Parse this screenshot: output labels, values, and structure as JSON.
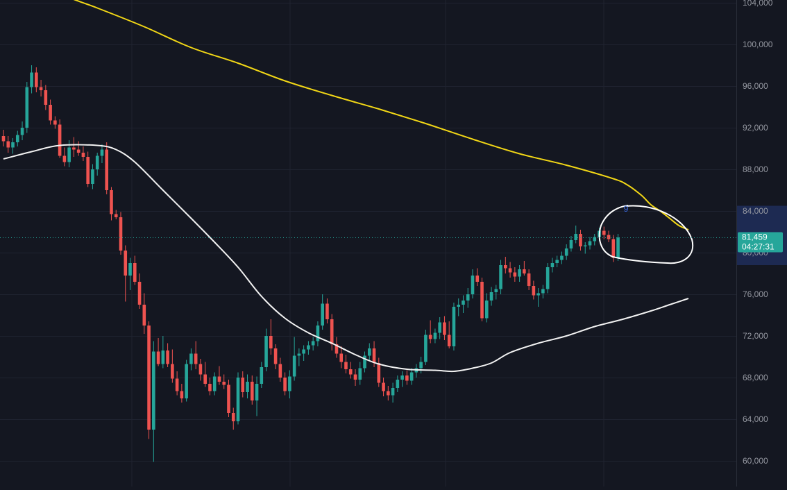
{
  "chart_data": {
    "type": "candlestick",
    "y_axis": {
      "position": "right",
      "ylim": [
        59400,
        104000
      ],
      "ticks": [
        60000,
        64000,
        68000,
        72000,
        76000,
        80000,
        84000,
        88000,
        92000,
        96000,
        100000,
        104000
      ],
      "tick_labels": [
        "60,000",
        "64,000",
        "68,000",
        "72,000",
        "76,000",
        "80,000",
        "84,000",
        "88,000",
        "92,000",
        "96,000",
        "100,000",
        "104,000"
      ]
    },
    "grid": true,
    "candles": [
      {
        "o": 91200,
        "h": 91800,
        "l": 90200,
        "c": 90700
      },
      {
        "o": 90700,
        "h": 91200,
        "l": 89600,
        "c": 90100
      },
      {
        "o": 90100,
        "h": 91000,
        "l": 89500,
        "c": 90600
      },
      {
        "o": 90600,
        "h": 91700,
        "l": 90200,
        "c": 91300
      },
      {
        "o": 91300,
        "h": 92600,
        "l": 90800,
        "c": 92000
      },
      {
        "o": 92000,
        "h": 96400,
        "l": 91500,
        "c": 95900
      },
      {
        "o": 95900,
        "h": 98000,
        "l": 95300,
        "c": 97300
      },
      {
        "o": 97300,
        "h": 97800,
        "l": 95400,
        "c": 95900
      },
      {
        "o": 95900,
        "h": 96600,
        "l": 95000,
        "c": 95600
      },
      {
        "o": 95600,
        "h": 96100,
        "l": 93700,
        "c": 94200
      },
      {
        "o": 94200,
        "h": 94700,
        "l": 92300,
        "c": 92700
      },
      {
        "o": 92700,
        "h": 93100,
        "l": 91900,
        "c": 92300
      },
      {
        "o": 92300,
        "h": 92800,
        "l": 89100,
        "c": 89300
      },
      {
        "o": 89300,
        "h": 90100,
        "l": 88300,
        "c": 88700
      },
      {
        "o": 88700,
        "h": 90800,
        "l": 88200,
        "c": 90100
      },
      {
        "o": 90100,
        "h": 91100,
        "l": 89200,
        "c": 89900
      },
      {
        "o": 89900,
        "h": 90700,
        "l": 89300,
        "c": 89600
      },
      {
        "o": 89600,
        "h": 90200,
        "l": 88800,
        "c": 89200
      },
      {
        "o": 89200,
        "h": 89700,
        "l": 86300,
        "c": 86600
      },
      {
        "o": 86600,
        "h": 88500,
        "l": 86100,
        "c": 88000
      },
      {
        "o": 88000,
        "h": 89600,
        "l": 87400,
        "c": 89300
      },
      {
        "o": 89300,
        "h": 90400,
        "l": 88600,
        "c": 89900
      },
      {
        "o": 89900,
        "h": 90600,
        "l": 85600,
        "c": 86000
      },
      {
        "o": 86000,
        "h": 86300,
        "l": 83100,
        "c": 83700
      },
      {
        "o": 83700,
        "h": 84100,
        "l": 83200,
        "c": 83400
      },
      {
        "o": 83400,
        "h": 83900,
        "l": 79800,
        "c": 80200
      },
      {
        "o": 80200,
        "h": 80700,
        "l": 75300,
        "c": 77800
      },
      {
        "o": 77800,
        "h": 79500,
        "l": 76400,
        "c": 79000
      },
      {
        "o": 79000,
        "h": 79700,
        "l": 76900,
        "c": 77200
      },
      {
        "o": 77200,
        "h": 78000,
        "l": 74600,
        "c": 75000
      },
      {
        "o": 75000,
        "h": 76100,
        "l": 72200,
        "c": 73000
      },
      {
        "o": 73000,
        "h": 73400,
        "l": 62100,
        "c": 63000
      },
      {
        "o": 63000,
        "h": 71500,
        "l": 59900,
        "c": 70500
      },
      {
        "o": 70500,
        "h": 71800,
        "l": 69100,
        "c": 69300
      },
      {
        "o": 69300,
        "h": 72000,
        "l": 68900,
        "c": 70600
      },
      {
        "o": 70600,
        "h": 71300,
        "l": 69000,
        "c": 69300
      },
      {
        "o": 69300,
        "h": 70700,
        "l": 67500,
        "c": 67900
      },
      {
        "o": 67900,
        "h": 68600,
        "l": 66300,
        "c": 66700
      },
      {
        "o": 66700,
        "h": 67400,
        "l": 65600,
        "c": 66000
      },
      {
        "o": 66000,
        "h": 69700,
        "l": 65700,
        "c": 69300
      },
      {
        "o": 69300,
        "h": 70800,
        "l": 68700,
        "c": 70300
      },
      {
        "o": 70300,
        "h": 71500,
        "l": 68800,
        "c": 69300
      },
      {
        "o": 69300,
        "h": 69800,
        "l": 67700,
        "c": 68300
      },
      {
        "o": 68300,
        "h": 69500,
        "l": 67100,
        "c": 67400
      },
      {
        "o": 67400,
        "h": 68000,
        "l": 66300,
        "c": 66700
      },
      {
        "o": 66700,
        "h": 68500,
        "l": 66300,
        "c": 68100
      },
      {
        "o": 68100,
        "h": 69100,
        "l": 67300,
        "c": 67600
      },
      {
        "o": 67600,
        "h": 68300,
        "l": 66900,
        "c": 67300
      },
      {
        "o": 67300,
        "h": 67800,
        "l": 64200,
        "c": 64600
      },
      {
        "o": 64600,
        "h": 65100,
        "l": 63000,
        "c": 63800
      },
      {
        "o": 63800,
        "h": 68500,
        "l": 63500,
        "c": 68000
      },
      {
        "o": 68000,
        "h": 68600,
        "l": 66100,
        "c": 66600
      },
      {
        "o": 66600,
        "h": 68300,
        "l": 66000,
        "c": 67600
      },
      {
        "o": 67600,
        "h": 68200,
        "l": 65400,
        "c": 65800
      },
      {
        "o": 65800,
        "h": 68100,
        "l": 64300,
        "c": 67400
      },
      {
        "o": 67400,
        "h": 69500,
        "l": 67000,
        "c": 69000
      },
      {
        "o": 69000,
        "h": 72700,
        "l": 68600,
        "c": 72000
      },
      {
        "o": 72000,
        "h": 73600,
        "l": 70200,
        "c": 70800
      },
      {
        "o": 70800,
        "h": 71200,
        "l": 68800,
        "c": 69300
      },
      {
        "o": 69300,
        "h": 69900,
        "l": 67600,
        "c": 68000
      },
      {
        "o": 68000,
        "h": 68500,
        "l": 66300,
        "c": 66700
      },
      {
        "o": 66700,
        "h": 68700,
        "l": 66000,
        "c": 68100
      },
      {
        "o": 68100,
        "h": 71900,
        "l": 67700,
        "c": 70100
      },
      {
        "o": 70100,
        "h": 70800,
        "l": 69100,
        "c": 70300
      },
      {
        "o": 70300,
        "h": 71100,
        "l": 69600,
        "c": 70700
      },
      {
        "o": 70700,
        "h": 71500,
        "l": 70200,
        "c": 71100
      },
      {
        "o": 71100,
        "h": 71900,
        "l": 70600,
        "c": 71500
      },
      {
        "o": 71500,
        "h": 73400,
        "l": 71000,
        "c": 73000
      },
      {
        "o": 73000,
        "h": 76000,
        "l": 72600,
        "c": 75100
      },
      {
        "o": 75100,
        "h": 75600,
        "l": 73200,
        "c": 73600
      },
      {
        "o": 73600,
        "h": 74100,
        "l": 70600,
        "c": 71200
      },
      {
        "o": 71200,
        "h": 71900,
        "l": 69900,
        "c": 70300
      },
      {
        "o": 70300,
        "h": 71000,
        "l": 68900,
        "c": 69500
      },
      {
        "o": 69500,
        "h": 70200,
        "l": 68400,
        "c": 68800
      },
      {
        "o": 68800,
        "h": 69500,
        "l": 67900,
        "c": 68300
      },
      {
        "o": 68300,
        "h": 68800,
        "l": 67200,
        "c": 67800
      },
      {
        "o": 67800,
        "h": 69500,
        "l": 67300,
        "c": 68900
      },
      {
        "o": 68900,
        "h": 70500,
        "l": 68500,
        "c": 70100
      },
      {
        "o": 70100,
        "h": 71300,
        "l": 69600,
        "c": 70800
      },
      {
        "o": 70800,
        "h": 71500,
        "l": 69000,
        "c": 69400
      },
      {
        "o": 69400,
        "h": 69900,
        "l": 67100,
        "c": 67500
      },
      {
        "o": 67500,
        "h": 68000,
        "l": 66200,
        "c": 66700
      },
      {
        "o": 66700,
        "h": 67200,
        "l": 65800,
        "c": 66300
      },
      {
        "o": 66300,
        "h": 67500,
        "l": 65600,
        "c": 67000
      },
      {
        "o": 67000,
        "h": 68200,
        "l": 66600,
        "c": 67800
      },
      {
        "o": 67800,
        "h": 68600,
        "l": 67100,
        "c": 68200
      },
      {
        "o": 68200,
        "h": 68700,
        "l": 67300,
        "c": 67700
      },
      {
        "o": 67700,
        "h": 68900,
        "l": 67300,
        "c": 68500
      },
      {
        "o": 68500,
        "h": 69300,
        "l": 68000,
        "c": 68900
      },
      {
        "o": 68900,
        "h": 70000,
        "l": 68400,
        "c": 69500
      },
      {
        "o": 69500,
        "h": 72600,
        "l": 69200,
        "c": 72100
      },
      {
        "o": 72100,
        "h": 73500,
        "l": 71300,
        "c": 71700
      },
      {
        "o": 71700,
        "h": 72700,
        "l": 71300,
        "c": 72300
      },
      {
        "o": 72300,
        "h": 73800,
        "l": 71700,
        "c": 73300
      },
      {
        "o": 73300,
        "h": 73900,
        "l": 71600,
        "c": 72100
      },
      {
        "o": 72100,
        "h": 73400,
        "l": 70800,
        "c": 71000
      },
      {
        "o": 71000,
        "h": 75200,
        "l": 70600,
        "c": 74800
      },
      {
        "o": 74800,
        "h": 75600,
        "l": 73900,
        "c": 75000
      },
      {
        "o": 75000,
        "h": 75900,
        "l": 74200,
        "c": 75400
      },
      {
        "o": 75400,
        "h": 76600,
        "l": 74700,
        "c": 76000
      },
      {
        "o": 76000,
        "h": 78400,
        "l": 75600,
        "c": 77800
      },
      {
        "o": 77800,
        "h": 78500,
        "l": 76800,
        "c": 77200
      },
      {
        "o": 77200,
        "h": 77600,
        "l": 73400,
        "c": 73700
      },
      {
        "o": 73700,
        "h": 76100,
        "l": 73300,
        "c": 75400
      },
      {
        "o": 75400,
        "h": 76700,
        "l": 74900,
        "c": 76200
      },
      {
        "o": 76200,
        "h": 76900,
        "l": 75500,
        "c": 76500
      },
      {
        "o": 76500,
        "h": 79300,
        "l": 76000,
        "c": 78800
      },
      {
        "o": 78800,
        "h": 79600,
        "l": 78000,
        "c": 78500
      },
      {
        "o": 78500,
        "h": 79100,
        "l": 77600,
        "c": 78100
      },
      {
        "o": 78100,
        "h": 78600,
        "l": 77200,
        "c": 77700
      },
      {
        "o": 77700,
        "h": 78800,
        "l": 77200,
        "c": 78400
      },
      {
        "o": 78400,
        "h": 79200,
        "l": 77800,
        "c": 78000
      },
      {
        "o": 78000,
        "h": 78400,
        "l": 76400,
        "c": 76800
      },
      {
        "o": 76800,
        "h": 77300,
        "l": 75500,
        "c": 75900
      },
      {
        "o": 75900,
        "h": 76600,
        "l": 74800,
        "c": 76100
      },
      {
        "o": 76100,
        "h": 76900,
        "l": 75600,
        "c": 76500
      },
      {
        "o": 76500,
        "h": 79000,
        "l": 76100,
        "c": 78600
      },
      {
        "o": 78600,
        "h": 79500,
        "l": 78100,
        "c": 79000
      },
      {
        "o": 79000,
        "h": 79700,
        "l": 78600,
        "c": 79300
      },
      {
        "o": 79300,
        "h": 80100,
        "l": 78900,
        "c": 79700
      },
      {
        "o": 79700,
        "h": 80800,
        "l": 79300,
        "c": 80400
      },
      {
        "o": 80400,
        "h": 81600,
        "l": 80100,
        "c": 81200
      },
      {
        "o": 81200,
        "h": 82600,
        "l": 80900,
        "c": 81800
      },
      {
        "o": 81800,
        "h": 82200,
        "l": 80200,
        "c": 80600
      },
      {
        "o": 80600,
        "h": 81000,
        "l": 79900,
        "c": 80700
      },
      {
        "o": 80700,
        "h": 81500,
        "l": 80300,
        "c": 81100
      },
      {
        "o": 81100,
        "h": 81800,
        "l": 80700,
        "c": 81500
      },
      {
        "o": 81500,
        "h": 82400,
        "l": 81100,
        "c": 82100
      },
      {
        "o": 82100,
        "h": 82500,
        "l": 81300,
        "c": 81700
      },
      {
        "o": 81700,
        "h": 82100,
        "l": 81000,
        "c": 81300
      },
      {
        "o": 81300,
        "h": 81700,
        "l": 79100,
        "c": 79500
      },
      {
        "o": 79500,
        "h": 81800,
        "l": 79200,
        "c": 81459
      }
    ],
    "ma_slow": {
      "color": "#f2d716",
      "values": [
        [
          0,
          107500
        ],
        [
          10,
          105200
        ],
        [
          20,
          103500
        ],
        [
          30,
          101700
        ],
        [
          40,
          99700
        ],
        [
          50,
          98200
        ],
        [
          60,
          96500
        ],
        [
          70,
          95100
        ],
        [
          80,
          93800
        ],
        [
          90,
          92400
        ],
        [
          100,
          90900
        ],
        [
          110,
          89500
        ],
        [
          120,
          88400
        ],
        [
          130,
          87100
        ],
        [
          133,
          86500
        ],
        [
          136,
          85500
        ],
        [
          138,
          84600
        ],
        [
          140,
          84000
        ],
        [
          142,
          83300
        ],
        [
          144,
          82600
        ],
        [
          146,
          82200
        ]
      ]
    },
    "ma_fast": {
      "color": "#f2f2f2",
      "values": [
        [
          0,
          89000
        ],
        [
          6,
          89700
        ],
        [
          12,
          90300
        ],
        [
          20,
          90300
        ],
        [
          24,
          89900
        ],
        [
          28,
          88700
        ],
        [
          34,
          86000
        ],
        [
          40,
          83300
        ],
        [
          45,
          81000
        ],
        [
          50,
          78600
        ],
        [
          55,
          75800
        ],
        [
          60,
          73700
        ],
        [
          65,
          72300
        ],
        [
          70,
          71300
        ],
        [
          75,
          70200
        ],
        [
          80,
          69300
        ],
        [
          86,
          68800
        ],
        [
          92,
          68700
        ],
        [
          96,
          68600
        ],
        [
          100,
          68900
        ],
        [
          104,
          69400
        ],
        [
          108,
          70400
        ],
        [
          114,
          71300
        ],
        [
          120,
          72000
        ],
        [
          126,
          72900
        ],
        [
          132,
          73600
        ],
        [
          138,
          74400
        ],
        [
          142,
          75000
        ],
        [
          146,
          75600
        ]
      ]
    },
    "last_price": {
      "value": 81459,
      "label": "81,459",
      "countdown": "04:27:31"
    },
    "annotation": {
      "label": "9"
    },
    "colors": {
      "up": "#26a69a",
      "down": "#ef5350",
      "background": "#141721",
      "grid": "#1f2330",
      "axis_text": "#9598a1",
      "price_tag": "#26a69a"
    }
  }
}
